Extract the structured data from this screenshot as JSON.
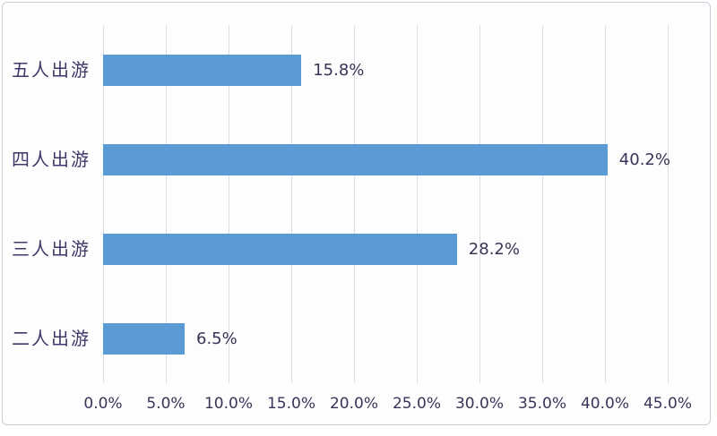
{
  "chart_data": {
    "type": "bar",
    "orientation": "horizontal",
    "title": "",
    "categories": [
      "五人出游",
      "四人出游",
      "三人出游",
      "二人出游"
    ],
    "values": [
      15.8,
      40.2,
      28.2,
      6.5
    ],
    "value_labels": [
      "15.8%",
      "40.2%",
      "28.2%",
      "6.5%"
    ],
    "x_ticks": [
      "0.0%",
      "5.0%",
      "10.0%",
      "15.0%",
      "20.0%",
      "25.0%",
      "30.0%",
      "35.0%",
      "40.0%",
      "45.0%"
    ],
    "xlim": [
      0,
      45
    ],
    "grid": true,
    "legend": false,
    "bar_color": "#5B9BD5"
  },
  "colors": {
    "bar": "#5B9BD5",
    "gridline": "#DADDE4",
    "category_label": "#413768",
    "number_label": "#3A3456",
    "frame_border": "#C7CCD8",
    "background": "#FDFDFE"
  }
}
